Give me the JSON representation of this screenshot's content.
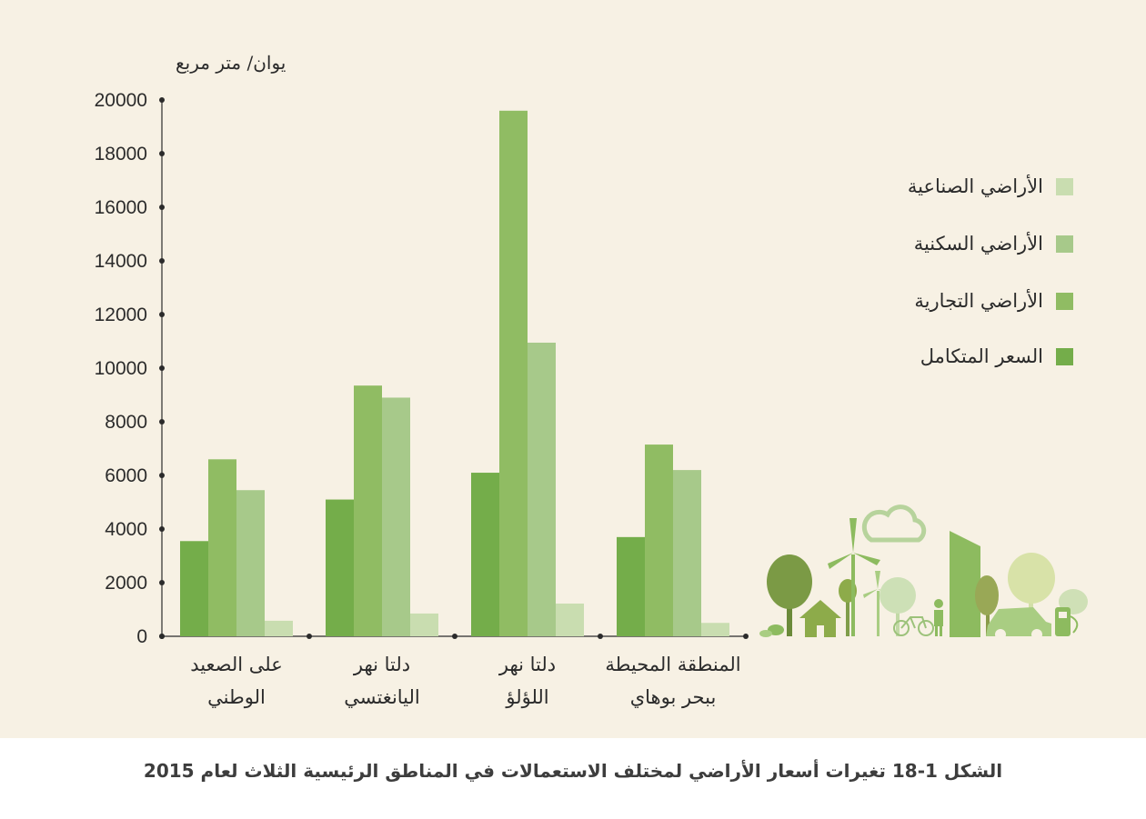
{
  "chart_data": {
    "type": "bar",
    "ylabel": "يوان/ متر مربع",
    "ylim": [
      0,
      20000
    ],
    "yticks": [
      0,
      2000,
      4000,
      6000,
      8000,
      10000,
      12000,
      14000,
      16000,
      18000,
      20000
    ],
    "grid": false,
    "legend_position": "right",
    "categories": [
      [
        "على الصعيد",
        "الوطني"
      ],
      [
        "دلتا نهر",
        "اليانغتسي"
      ],
      [
        "دلتا نهر",
        "اللؤلؤ"
      ],
      [
        "المنطقة المحيطة",
        "ببحر بوهاي"
      ]
    ],
    "series": [
      {
        "name": "السعر المتكامل",
        "color": "#74ad4a",
        "values": [
          3550,
          5100,
          6100,
          3700
        ]
      },
      {
        "name": "الأراضي التجارية",
        "color": "#90bc63",
        "values": [
          6600,
          9350,
          19600,
          7150
        ]
      },
      {
        "name": "الأراضي السكنية",
        "color": "#a7c98a",
        "values": [
          5450,
          8900,
          10950,
          6200
        ]
      },
      {
        "name": "الأراضي الصناعية",
        "color": "#c9ddb0",
        "values": [
          580,
          850,
          1220,
          500
        ]
      }
    ]
  },
  "legend_order": [
    3,
    2,
    1,
    0
  ],
  "caption": "الشكل 1-18 تغيرات أسعار الأراضي لمختلف الاستعمالات في المناطق الرئيسية الثلاث لعام 2015",
  "illustration_icons": [
    "tree-icon",
    "house-icon",
    "wind-turbine-icon",
    "cloud-icon",
    "bicycle-icon",
    "person-icon",
    "building-icon",
    "car-icon",
    "charging-station-icon"
  ]
}
